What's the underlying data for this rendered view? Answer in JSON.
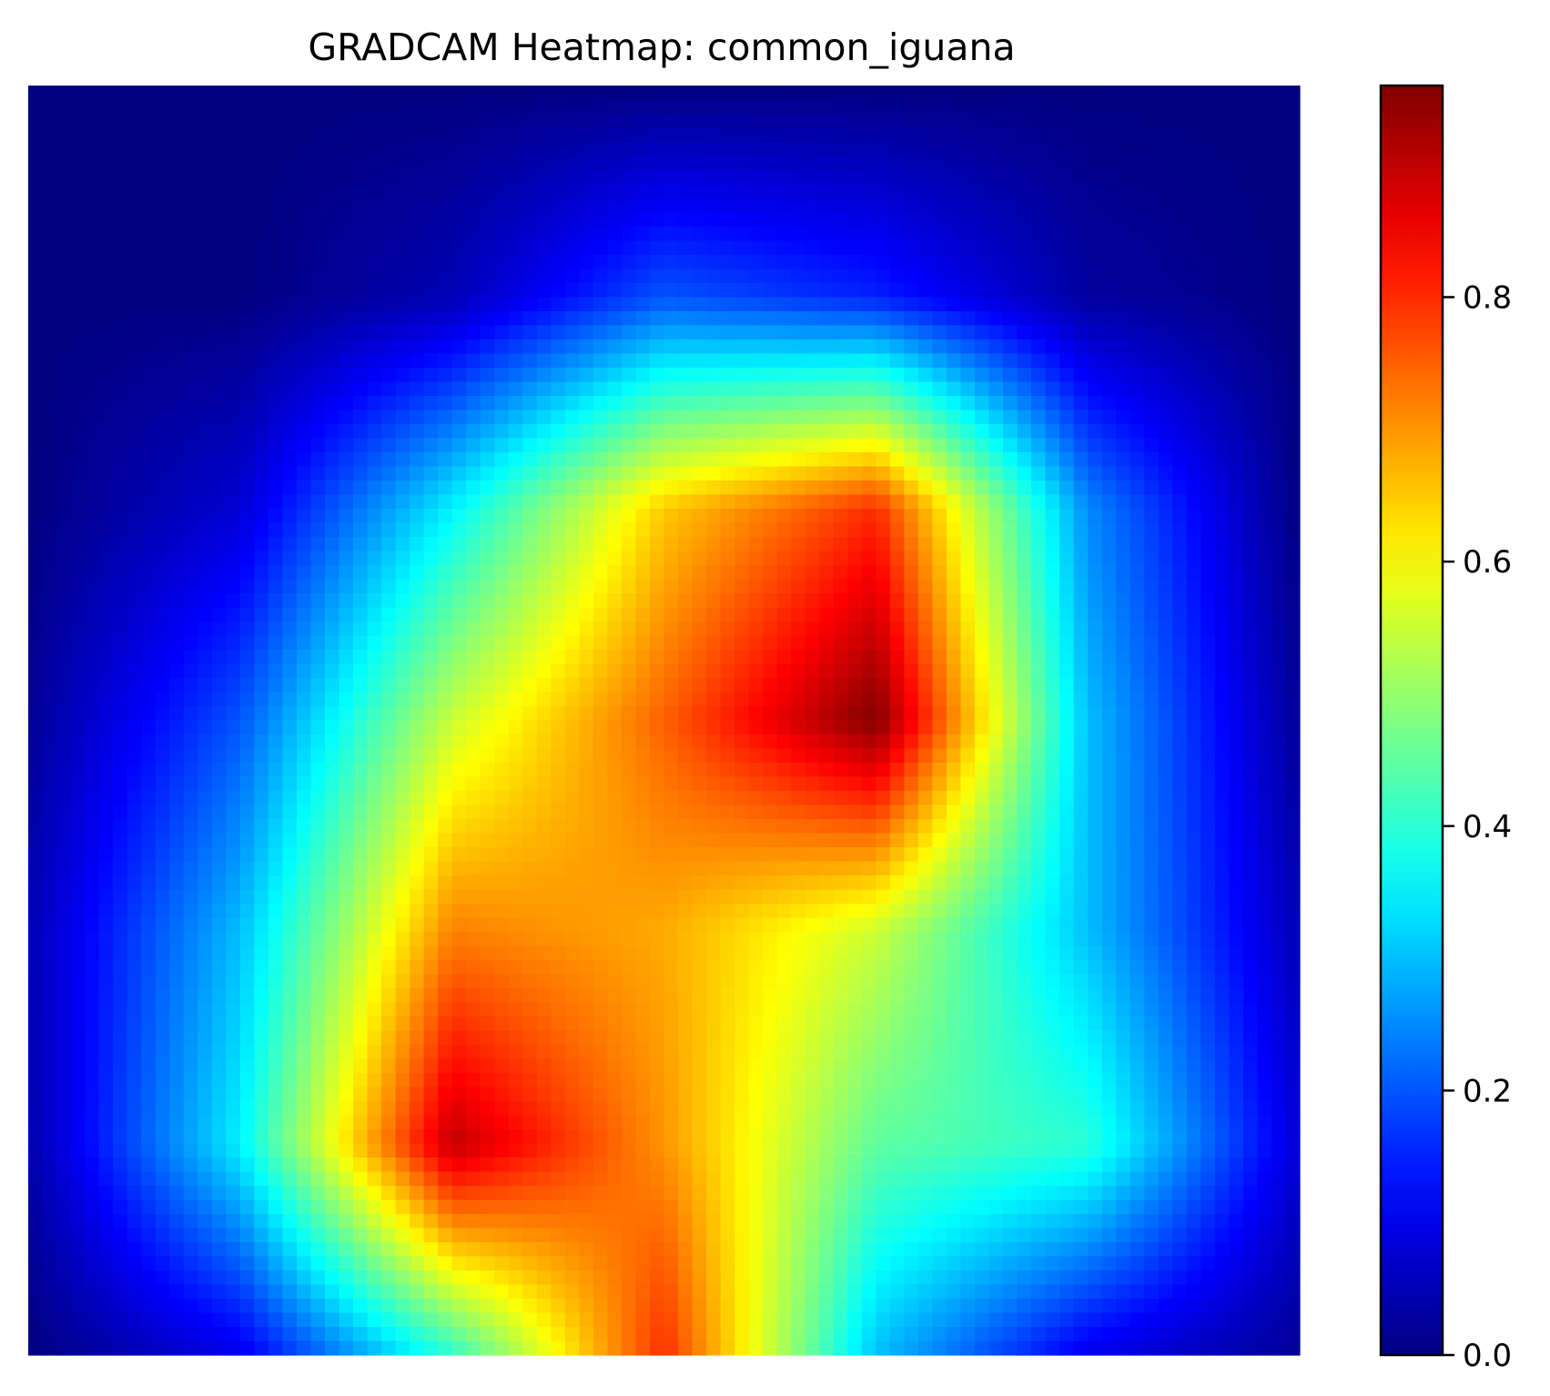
{
  "chart_data": {
    "type": "heatmap",
    "title": "GRADCAM Heatmap: common_iguana",
    "xlabel": "",
    "ylabel": "",
    "axes_visible": false,
    "grid": false,
    "colormap": "jet",
    "colorbar": {
      "range": [
        0.0,
        0.96
      ],
      "ticks": [
        0.0,
        0.2,
        0.4,
        0.6,
        0.8
      ],
      "tick_labels": [
        "0.0",
        "0.2",
        "0.4",
        "0.6",
        "0.8"
      ],
      "placement": "right"
    },
    "grid_rows": 7,
    "grid_cols": 7,
    "values": [
      [
        0.0,
        0.0,
        0.0,
        0.0,
        0.0,
        0.0,
        0.0
      ],
      [
        0.0,
        0.0,
        0.05,
        0.2,
        0.15,
        0.03,
        0.0
      ],
      [
        0.0,
        0.08,
        0.35,
        0.65,
        0.8,
        0.25,
        0.0
      ],
      [
        0.02,
        0.2,
        0.55,
        0.75,
        0.96,
        0.3,
        0.02
      ],
      [
        0.05,
        0.3,
        0.72,
        0.68,
        0.55,
        0.3,
        0.05
      ],
      [
        0.04,
        0.35,
        0.9,
        0.7,
        0.45,
        0.4,
        0.08
      ],
      [
        0.0,
        0.1,
        0.4,
        0.8,
        0.3,
        0.1,
        0.02
      ]
    ]
  }
}
